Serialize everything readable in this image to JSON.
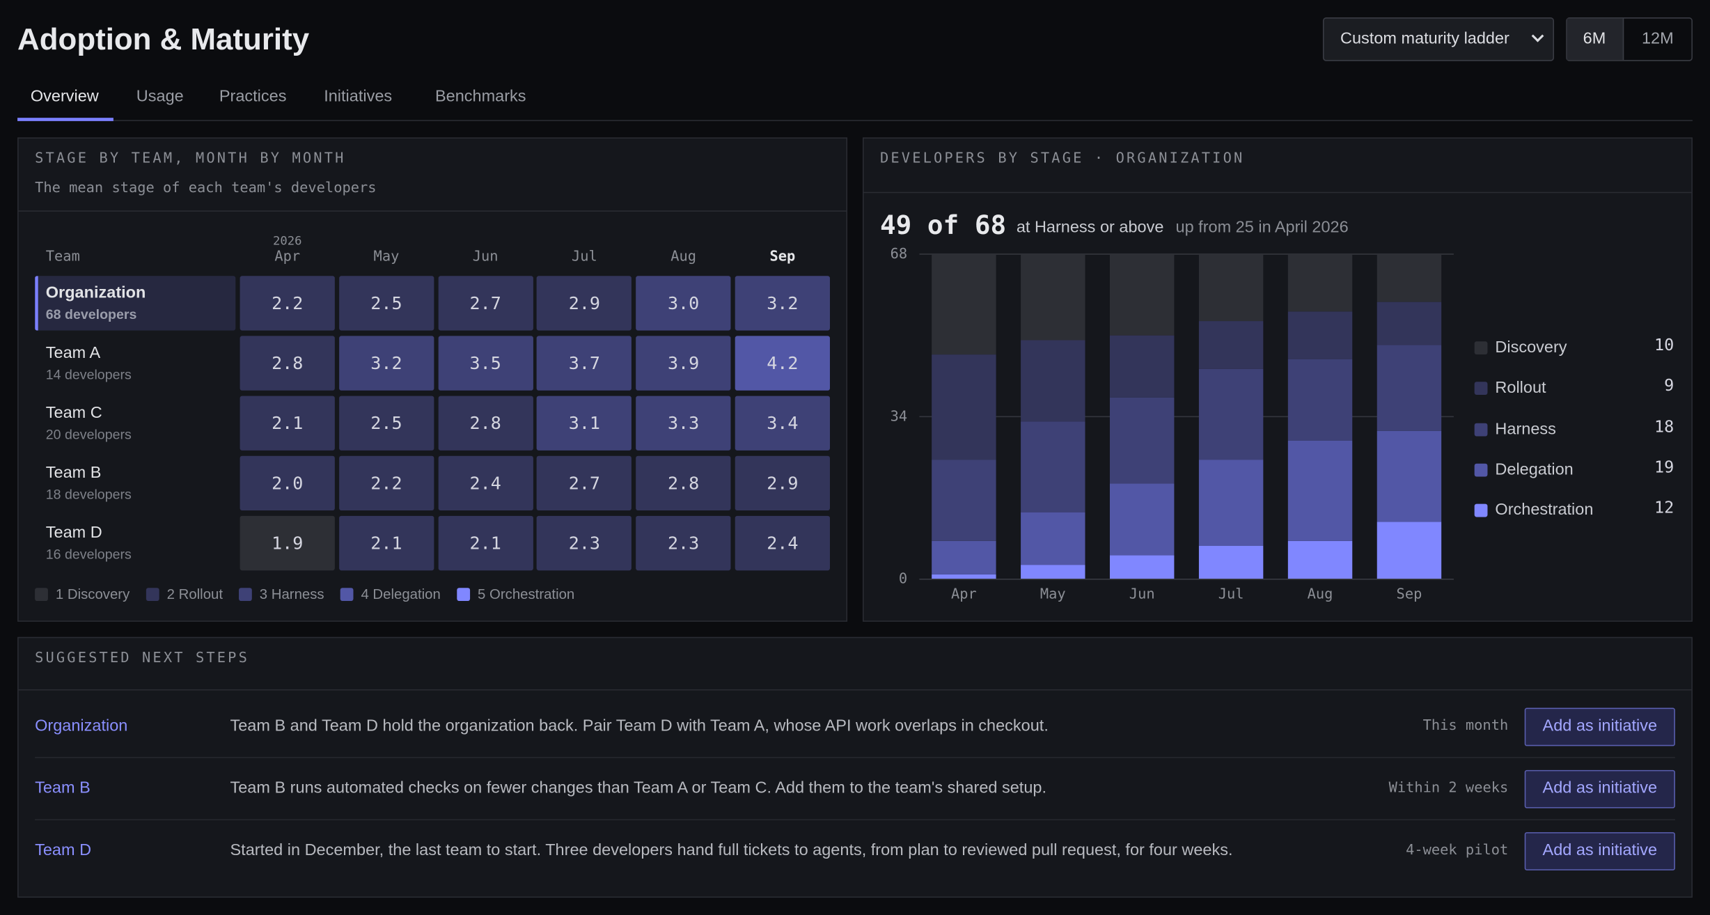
{
  "header": {
    "title": "Adoption & Maturity",
    "ladder_select": "Custom maturity ladder",
    "periods": [
      "6M",
      "12M"
    ]
  },
  "tabs": [
    "Overview",
    "Usage",
    "Practices",
    "Initiatives",
    "Benchmarks"
  ],
  "heatmap": {
    "title": "STAGE BY TEAM, MONTH BY MONTH",
    "subtitle": "The mean stage of each team's developers",
    "team_header": "Team",
    "year": "2026",
    "months": [
      "Apr",
      "May",
      "Jun",
      "Jul",
      "Aug",
      "Sep"
    ],
    "rows": [
      {
        "name": "Organization",
        "size": "68 developers",
        "values": [
          "2.2",
          "2.5",
          "2.7",
          "2.9",
          "3.0",
          "3.2"
        ]
      },
      {
        "name": "Team A",
        "size": "14 developers",
        "values": [
          "2.8",
          "3.2",
          "3.5",
          "3.7",
          "3.9",
          "4.2"
        ]
      },
      {
        "name": "Team C",
        "size": "20 developers",
        "values": [
          "2.1",
          "2.5",
          "2.8",
          "3.1",
          "3.3",
          "3.4"
        ]
      },
      {
        "name": "Team B",
        "size": "18 developers",
        "values": [
          "2.0",
          "2.2",
          "2.4",
          "2.7",
          "2.8",
          "2.9"
        ]
      },
      {
        "name": "Team D",
        "size": "16 developers",
        "values": [
          "1.9",
          "2.1",
          "2.1",
          "2.3",
          "2.3",
          "2.4"
        ]
      }
    ],
    "legend": [
      {
        "label": "1 Discovery",
        "color": "#2d2f35"
      },
      {
        "label": "2 Rollout",
        "color": "#33355a"
      },
      {
        "label": "3 Harness",
        "color": "#3e4176"
      },
      {
        "label": "4 Delegation",
        "color": "#5257a6"
      },
      {
        "label": "5 Orchestration",
        "color": "#8087ff"
      }
    ]
  },
  "chart_data": {
    "type": "stacked_bar",
    "title": "DEVELOPERS BY STAGE · ORGANIZATION",
    "headline": "49 of 68",
    "headline_text": "at Harness or above",
    "headline_note": "up from 25 in April 2026",
    "categories": [
      "Apr",
      "May",
      "Jun",
      "Jul",
      "Aug",
      "Sep"
    ],
    "series": [
      {
        "name": "Discovery",
        "color": "#2d2f35",
        "values": [
          21,
          18,
          17,
          14,
          12,
          10
        ]
      },
      {
        "name": "Rollout",
        "color": "#33355a",
        "values": [
          22,
          17,
          13,
          10,
          10,
          9
        ]
      },
      {
        "name": "Harness",
        "color": "#3e4176",
        "values": [
          17,
          19,
          18,
          19,
          17,
          18
        ]
      },
      {
        "name": "Delegation",
        "color": "#5257a6",
        "values": [
          7,
          11,
          15,
          18,
          21,
          19
        ]
      },
      {
        "name": "Orchestration",
        "color": "#8087ff",
        "values": [
          1,
          3,
          5,
          7,
          8,
          12
        ]
      }
    ],
    "ylim": [
      0,
      68
    ],
    "yticks": [
      0,
      34,
      68
    ],
    "grid": true
  },
  "next_steps": {
    "title": "SUGGESTED NEXT STEPS",
    "rows": [
      {
        "team": "Organization",
        "text": "Team B and Team D hold the organization back. Pair Team D with Team A, whose API work overlaps in checkout.",
        "timing": "This month",
        "action": "Add as initiative"
      },
      {
        "team": "Team B",
        "text": "Team B runs automated checks on fewer changes than Team A or Team C. Add them to the team's shared setup.",
        "timing": "Within 2 weeks",
        "action": "Add as initiative"
      },
      {
        "team": "Team D",
        "text": "Started in December, the last team to start. Three developers hand full tickets to agents, from plan to reviewed pull request, for four weeks.",
        "timing": "4-week pilot",
        "action": "Add as initiative"
      }
    ]
  }
}
